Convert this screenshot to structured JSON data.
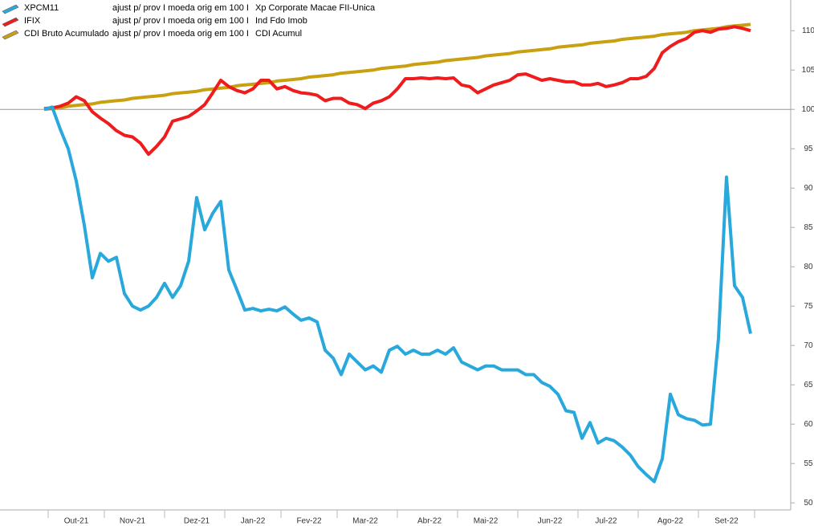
{
  "chart_data": {
    "type": "line",
    "categories": [
      null,
      null,
      null,
      null,
      "Out-21",
      null,
      null,
      null,
      null,
      null,
      null,
      "Nov-21",
      null,
      null,
      null,
      null,
      null,
      null,
      null,
      "Dez-21",
      null,
      null,
      null,
      null,
      null,
      null,
      "Jan-22",
      null,
      null,
      null,
      null,
      null,
      null,
      "Fev-22",
      null,
      null,
      null,
      null,
      null,
      null,
      "Mar-22",
      null,
      null,
      null,
      null,
      null,
      null,
      null,
      "Abr-22",
      null,
      null,
      null,
      null,
      null,
      null,
      "Mai-22",
      null,
      null,
      null,
      null,
      null,
      null,
      null,
      "Jun-22",
      null,
      null,
      null,
      null,
      null,
      null,
      "Jul-22",
      null,
      null,
      null,
      null,
      null,
      null,
      null,
      "Ago-22",
      null,
      null,
      null,
      null,
      null,
      null,
      "Set-22",
      null,
      null,
      null
    ],
    "series": [
      {
        "name": "XPCM11",
        "adjustment": "ajust p/  prov I moeda orig em 100 I",
        "description": "Xp Corporate Macae FII-Unica",
        "color": "#29a8dc",
        "values": [
          100,
          100.3,
          97.5,
          95,
          90.9,
          85.3,
          78.6,
          81.7,
          80.7,
          81.2,
          76.6,
          75,
          74.5,
          75,
          76.1,
          77.9,
          76.1,
          77.6,
          80.7,
          88.8,
          84.7,
          86.8,
          88.3,
          79.6,
          77.1,
          74.5,
          74.7,
          74.4,
          74.6,
          74.4,
          74.9,
          74,
          73.2,
          73.5,
          73,
          69.4,
          68.4,
          66.3,
          68.9,
          67.9,
          66.9,
          67.4,
          66.6,
          69.4,
          69.9,
          68.9,
          69.4,
          68.9,
          68.9,
          69.4,
          68.9,
          69.7,
          67.9,
          67.4,
          66.9,
          67.4,
          67.4,
          66.9,
          66.9,
          66.9,
          66.3,
          66.3,
          65.3,
          64.8,
          63.8,
          61.7,
          61.5,
          58.2,
          60.2,
          57.6,
          58.2,
          57.9,
          57.1,
          56.1,
          54.6,
          53.6,
          52.7,
          55.6,
          63.8,
          61.2,
          60.7,
          60.5,
          59.9,
          60,
          70.9,
          91.4,
          77.6,
          76.1,
          71.5
        ]
      },
      {
        "name": "IFIX",
        "adjustment": "ajust p/  prov I moeda orig em 100 I",
        "description": "Ind Fdo Imob",
        "color": "#ee1c1c",
        "values": [
          100.1,
          100.2,
          100.4,
          100.8,
          101.6,
          101.1,
          99.7,
          98.9,
          98.2,
          97.3,
          96.7,
          96.5,
          95.7,
          94.3,
          95.3,
          96.5,
          98.5,
          98.8,
          99.1,
          99.8,
          100.6,
          102.1,
          103.7,
          102.9,
          102.4,
          102.1,
          102.6,
          103.7,
          103.7,
          102.6,
          102.9,
          102.4,
          102.1,
          102,
          101.8,
          101.1,
          101.4,
          101.4,
          100.8,
          100.6,
          100.1,
          100.8,
          101.1,
          101.6,
          102.6,
          103.9,
          103.9,
          104,
          103.9,
          104,
          103.9,
          104,
          103.1,
          102.9,
          102.1,
          102.6,
          103.1,
          103.4,
          103.7,
          104.4,
          104.5,
          104.1,
          103.7,
          103.9,
          103.7,
          103.5,
          103.5,
          103.1,
          103.1,
          103.3,
          102.9,
          103.1,
          103.4,
          103.9,
          103.9,
          104.2,
          105.2,
          107.2,
          108,
          108.6,
          109,
          109.8,
          110,
          109.8,
          110.2,
          110.3,
          110.5,
          110.3,
          110
        ]
      },
      {
        "name": "CDI Bruto Acumulado",
        "adjustment": "ajust p/  prov I moeda orig em 100 I",
        "description": "CDI Acumul",
        "color": "#c8a010",
        "values": [
          100.0,
          100.1,
          100.2,
          100.4,
          100.5,
          100.6,
          100.7,
          100.9,
          101.0,
          101.1,
          101.2,
          101.4,
          101.5,
          101.6,
          101.7,
          101.8,
          102.0,
          102.1,
          102.2,
          102.3,
          102.5,
          102.6,
          102.7,
          102.8,
          103.0,
          103.1,
          103.2,
          103.3,
          103.4,
          103.6,
          103.7,
          103.8,
          103.9,
          104.1,
          104.2,
          104.3,
          104.4,
          104.6,
          104.7,
          104.8,
          104.9,
          105.0,
          105.2,
          105.3,
          105.4,
          105.5,
          105.7,
          105.8,
          105.9,
          106.0,
          106.2,
          106.3,
          106.4,
          106.5,
          106.6,
          106.8,
          106.9,
          107.0,
          107.1,
          107.3,
          107.4,
          107.5,
          107.6,
          107.7,
          107.9,
          108.0,
          108.1,
          108.2,
          108.4,
          108.5,
          108.6,
          108.7,
          108.9,
          109.0,
          109.1,
          109.2,
          109.3,
          109.5,
          109.6,
          109.7,
          109.8,
          110.0,
          110.1,
          110.2,
          110.3,
          110.5,
          110.6,
          110.7,
          110.8
        ]
      }
    ],
    "ylim": [
      49.1,
      113.9
    ],
    "yticks": [
      50,
      55,
      60,
      65,
      70,
      75,
      80,
      85,
      90,
      95,
      100,
      105,
      110
    ],
    "reference_line": 100,
    "y_axis_side": "right",
    "grid": false
  }
}
